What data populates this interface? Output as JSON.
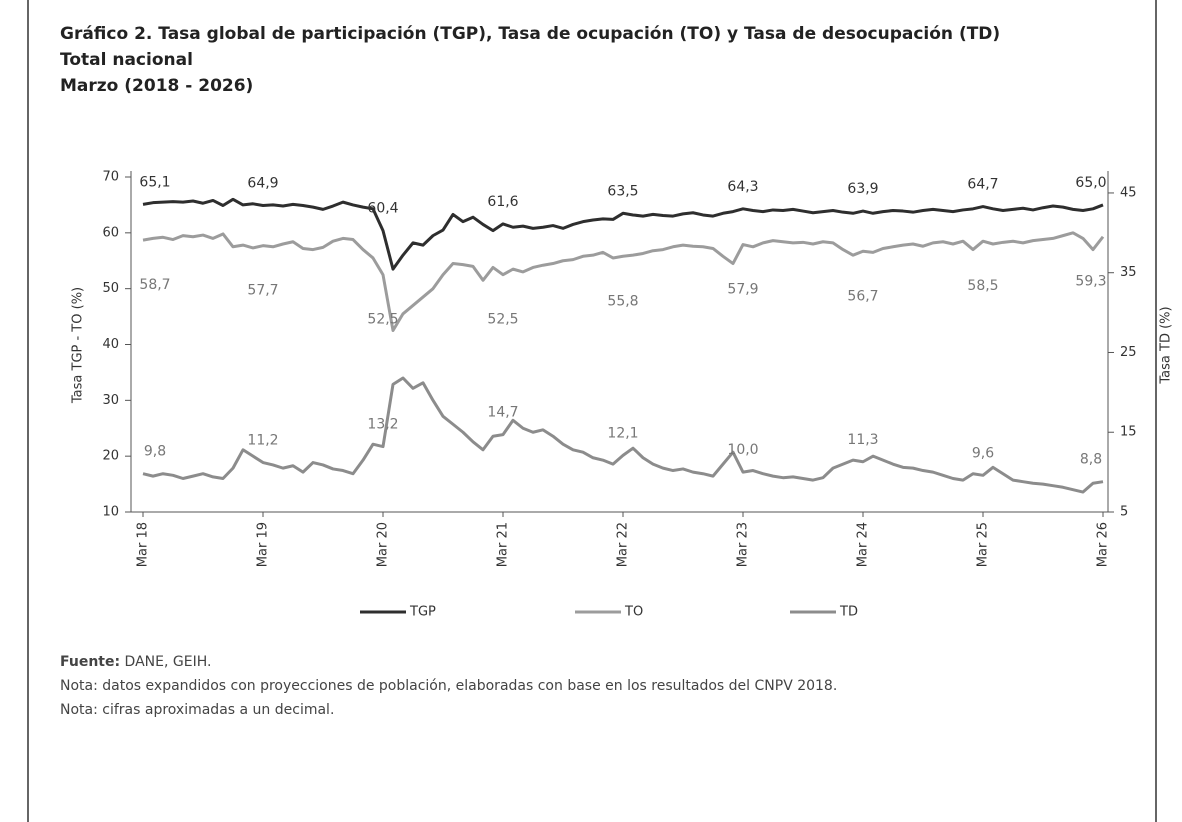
{
  "chart_data": {
    "type": "line",
    "title": "Gráfico 2. Tasa global de participación (TGP), Tasa de ocupación (TO) y Tasa de desocupación (TD)",
    "subtitle": "Total nacional",
    "subtitle2": "Marzo (2018 - 2026)",
    "ylabel": "Tasa TGP - TO (%)",
    "y2label": "Tasa TD (%)",
    "categories": [
      "Mar 18",
      null,
      null,
      null,
      null,
      null,
      null,
      null,
      null,
      null,
      null,
      null,
      "Mar 19",
      null,
      null,
      null,
      null,
      null,
      null,
      null,
      null,
      null,
      null,
      null,
      "Mar 20",
      null,
      null,
      null,
      null,
      null,
      null,
      null,
      null,
      null,
      null,
      null,
      "Mar 21",
      null,
      null,
      null,
      null,
      null,
      null,
      null,
      null,
      null,
      null,
      null,
      "Mar 22",
      null,
      null,
      null,
      null,
      null,
      null,
      null,
      null,
      null,
      null,
      null,
      "Mar 23",
      null,
      null,
      null,
      null,
      null,
      null,
      null,
      null,
      null,
      null,
      null,
      "Mar 24",
      null,
      null,
      null,
      null,
      null,
      null,
      null,
      null,
      null,
      null,
      null,
      "Mar 25",
      null,
      null,
      null,
      null,
      null,
      null,
      null,
      null,
      null,
      null,
      null,
      "Mar 26"
    ],
    "ylim": [
      10,
      70
    ],
    "yticks": [
      10,
      20,
      30,
      40,
      50,
      60,
      70
    ],
    "y2lim": [
      5,
      47
    ],
    "y2ticks": [
      5,
      15,
      25,
      35,
      45
    ],
    "series": [
      {
        "name": "TGP",
        "color": "#2e2e2e",
        "axis": "y",
        "values": [
          65.1,
          65.4,
          65.5,
          65.6,
          65.5,
          65.7,
          65.3,
          65.8,
          64.9,
          66.0,
          65.0,
          65.2,
          64.9,
          65.0,
          64.8,
          65.1,
          64.9,
          64.6,
          64.2,
          64.8,
          65.5,
          65.0,
          64.6,
          64.3,
          60.4,
          53.5,
          56.0,
          58.2,
          57.8,
          59.5,
          60.5,
          63.3,
          62.0,
          62.8,
          61.5,
          60.4,
          61.6,
          61.0,
          61.2,
          60.8,
          61.0,
          61.3,
          60.8,
          61.5,
          62.0,
          62.3,
          62.5,
          62.4,
          63.5,
          63.2,
          63.0,
          63.3,
          63.1,
          63.0,
          63.4,
          63.6,
          63.2,
          63.0,
          63.5,
          63.8,
          64.3,
          64.0,
          63.8,
          64.1,
          64.0,
          64.2,
          63.9,
          63.6,
          63.8,
          64.0,
          63.7,
          63.5,
          63.9,
          63.5,
          63.8,
          64.0,
          63.9,
          63.7,
          64.0,
          64.2,
          64.0,
          63.8,
          64.1,
          64.3,
          64.7,
          64.3,
          64.0,
          64.2,
          64.4,
          64.1,
          64.5,
          64.8,
          64.6,
          64.2,
          64.0,
          64.3,
          65.0
        ],
        "value_labels": [
          "65,1",
          null,
          null,
          null,
          null,
          null,
          null,
          null,
          null,
          null,
          null,
          null,
          "64,9",
          null,
          null,
          null,
          null,
          null,
          null,
          null,
          null,
          null,
          null,
          null,
          "60,4",
          null,
          null,
          null,
          null,
          null,
          null,
          null,
          null,
          null,
          null,
          null,
          "61,6",
          null,
          null,
          null,
          null,
          null,
          null,
          null,
          null,
          null,
          null,
          null,
          "63,5",
          null,
          null,
          null,
          null,
          null,
          null,
          null,
          null,
          null,
          null,
          null,
          "64,3",
          null,
          null,
          null,
          null,
          null,
          null,
          null,
          null,
          null,
          null,
          null,
          "63,9",
          null,
          null,
          null,
          null,
          null,
          null,
          null,
          null,
          null,
          null,
          null,
          "64,7",
          null,
          null,
          null,
          null,
          null,
          null,
          null,
          null,
          null,
          null,
          null,
          "65,0"
        ]
      },
      {
        "name": "TO",
        "color": "#9c9c9c",
        "axis": "y",
        "values": [
          58.7,
          59.0,
          59.2,
          58.8,
          59.5,
          59.3,
          59.6,
          59.0,
          59.8,
          57.5,
          57.8,
          57.3,
          57.7,
          57.5,
          58.0,
          58.4,
          57.2,
          57.0,
          57.4,
          58.5,
          59.0,
          58.8,
          57.0,
          55.5,
          52.5,
          42.5,
          45.5,
          47.0,
          48.5,
          50.0,
          52.5,
          54.5,
          54.3,
          54.0,
          51.5,
          53.8,
          52.5,
          53.5,
          53.0,
          53.8,
          54.2,
          54.5,
          55.0,
          55.2,
          55.8,
          56.0,
          56.5,
          55.5,
          55.8,
          56.0,
          56.3,
          56.8,
          57.0,
          57.5,
          57.8,
          57.6,
          57.5,
          57.2,
          55.8,
          54.5,
          57.9,
          57.5,
          58.2,
          58.6,
          58.4,
          58.2,
          58.3,
          58.0,
          58.4,
          58.2,
          57.0,
          56.0,
          56.7,
          56.5,
          57.2,
          57.5,
          57.8,
          58.0,
          57.6,
          58.2,
          58.4,
          58.0,
          58.5,
          57.0,
          58.5,
          58.0,
          58.3,
          58.5,
          58.2,
          58.6,
          58.8,
          59.0,
          59.5,
          60.0,
          59.0,
          57.0,
          59.3
        ],
        "value_labels": [
          "58,7",
          null,
          null,
          null,
          null,
          null,
          null,
          null,
          null,
          null,
          null,
          null,
          "57,7",
          null,
          null,
          null,
          null,
          null,
          null,
          null,
          null,
          null,
          null,
          null,
          "52,5",
          null,
          null,
          null,
          null,
          null,
          null,
          null,
          null,
          null,
          null,
          null,
          "52,5",
          null,
          null,
          null,
          null,
          null,
          null,
          null,
          null,
          null,
          null,
          null,
          "55,8",
          null,
          null,
          null,
          null,
          null,
          null,
          null,
          null,
          null,
          null,
          null,
          "57,9",
          null,
          null,
          null,
          null,
          null,
          null,
          null,
          null,
          null,
          null,
          null,
          "56,7",
          null,
          null,
          null,
          null,
          null,
          null,
          null,
          null,
          null,
          null,
          null,
          "58,5",
          null,
          null,
          null,
          null,
          null,
          null,
          null,
          null,
          null,
          null,
          null,
          "59,3"
        ]
      },
      {
        "name": "TD",
        "color": "#8c8c8c",
        "axis": "y2",
        "values": [
          9.8,
          9.5,
          9.8,
          9.6,
          9.2,
          9.5,
          9.8,
          9.4,
          9.2,
          10.5,
          12.8,
          12.0,
          11.2,
          10.9,
          10.5,
          10.8,
          10.0,
          11.2,
          10.9,
          10.4,
          10.2,
          9.8,
          11.5,
          13.5,
          13.2,
          21.0,
          21.8,
          20.5,
          21.2,
          19.0,
          17.0,
          16.0,
          15.0,
          13.8,
          12.8,
          14.5,
          14.7,
          16.5,
          15.5,
          15.0,
          15.3,
          14.5,
          13.5,
          12.8,
          12.5,
          11.8,
          11.5,
          11.0,
          12.1,
          13.0,
          11.8,
          11.0,
          10.5,
          10.2,
          10.4,
          10.0,
          9.8,
          9.5,
          11.0,
          12.5,
          10.0,
          10.2,
          9.8,
          9.5,
          9.3,
          9.4,
          9.2,
          9.0,
          9.3,
          10.5,
          11.0,
          11.5,
          11.3,
          12.0,
          11.5,
          11.0,
          10.6,
          10.5,
          10.2,
          10.0,
          9.6,
          9.2,
          9.0,
          9.8,
          9.6,
          10.6,
          9.8,
          9.0,
          8.8,
          8.6,
          8.5,
          8.3,
          8.1,
          7.8,
          7.5,
          8.6,
          8.8
        ],
        "value_labels": [
          "9,8",
          null,
          null,
          null,
          null,
          null,
          null,
          null,
          null,
          null,
          null,
          null,
          "11,2",
          null,
          null,
          null,
          null,
          null,
          null,
          null,
          null,
          null,
          null,
          null,
          "13,2",
          null,
          null,
          null,
          null,
          null,
          null,
          null,
          null,
          null,
          null,
          null,
          "14,7",
          null,
          null,
          null,
          null,
          null,
          null,
          null,
          null,
          null,
          null,
          null,
          "12,1",
          null,
          null,
          null,
          null,
          null,
          null,
          null,
          null,
          null,
          null,
          null,
          "10,0",
          null,
          null,
          null,
          null,
          null,
          null,
          null,
          null,
          null,
          null,
          null,
          "11,3",
          null,
          null,
          null,
          null,
          null,
          null,
          null,
          null,
          null,
          null,
          null,
          "9,6",
          null,
          null,
          null,
          null,
          null,
          null,
          null,
          null,
          null,
          null,
          null,
          "8,8"
        ]
      }
    ],
    "source_label": "Fuente:",
    "source_text": "DANE, GEIH.",
    "notes": [
      "Nota: datos expandidos con proyecciones de población, elaboradas con base en los resultados del CNPV 2018.",
      "Nota: cifras aproximadas a un decimal."
    ]
  }
}
